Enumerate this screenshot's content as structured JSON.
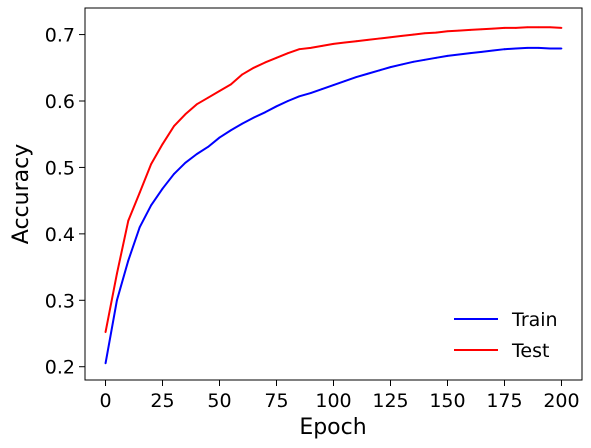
{
  "chart_data": {
    "type": "line",
    "title": "",
    "xlabel": "Epoch",
    "ylabel": "Accuracy",
    "xlim": [
      -9,
      209
    ],
    "ylim": [
      0.18,
      0.74
    ],
    "xticks": [
      0,
      25,
      50,
      75,
      100,
      125,
      150,
      175,
      200
    ],
    "xtick_labels": [
      "0",
      "25",
      "50",
      "75",
      "100",
      "125",
      "150",
      "175",
      "200"
    ],
    "yticks": [
      0.2,
      0.3,
      0.4,
      0.5,
      0.6,
      0.7
    ],
    "ytick_labels": [
      "0.2",
      "0.3",
      "0.4",
      "0.5",
      "0.6",
      "0.7"
    ],
    "grid": false,
    "legend": "lower-right",
    "x": [
      0,
      5,
      10,
      15,
      20,
      25,
      30,
      35,
      40,
      45,
      50,
      55,
      60,
      65,
      70,
      75,
      80,
      85,
      90,
      95,
      100,
      105,
      110,
      115,
      120,
      125,
      130,
      135,
      140,
      145,
      150,
      155,
      160,
      165,
      170,
      175,
      180,
      185,
      190,
      195,
      200
    ],
    "series": [
      {
        "name": "Train",
        "color": "#0000ff",
        "values": [
          0.205,
          0.3,
          0.36,
          0.41,
          0.443,
          0.468,
          0.49,
          0.507,
          0.52,
          0.531,
          0.545,
          0.556,
          0.566,
          0.575,
          0.583,
          0.592,
          0.6,
          0.607,
          0.612,
          0.618,
          0.624,
          0.63,
          0.636,
          0.641,
          0.646,
          0.651,
          0.655,
          0.659,
          0.662,
          0.665,
          0.668,
          0.67,
          0.672,
          0.674,
          0.676,
          0.678,
          0.679,
          0.68,
          0.68,
          0.679,
          0.679
        ]
      },
      {
        "name": "Test",
        "color": "#ff0000",
        "values": [
          0.252,
          0.34,
          0.42,
          0.462,
          0.505,
          0.535,
          0.562,
          0.58,
          0.595,
          0.605,
          0.615,
          0.625,
          0.64,
          0.65,
          0.658,
          0.665,
          0.672,
          0.678,
          0.68,
          0.683,
          0.686,
          0.688,
          0.69,
          0.692,
          0.694,
          0.696,
          0.698,
          0.7,
          0.702,
          0.703,
          0.705,
          0.706,
          0.707,
          0.708,
          0.709,
          0.71,
          0.71,
          0.711,
          0.711,
          0.711,
          0.71
        ]
      }
    ]
  }
}
